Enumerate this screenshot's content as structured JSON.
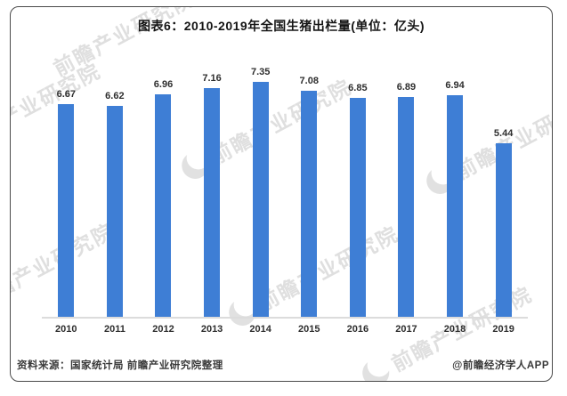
{
  "card": {
    "title": "图表6：2010-2019年全国生猪出栏量(单位：亿头)",
    "source_note": "资料来源：国家统计局 前瞻产业研究院整理",
    "credit": "@前瞻经济学人APP"
  },
  "watermark": {
    "text": "前瞻产业研究院",
    "logo_icon": "qianzhan-logo-circle",
    "color": "#c8c8c8"
  },
  "chart_data": {
    "type": "bar",
    "title": "图表6：2010-2019年全国生猪出栏量(单位：亿头)",
    "unit": "亿头",
    "categories": [
      "2010",
      "2011",
      "2012",
      "2013",
      "2014",
      "2015",
      "2016",
      "2017",
      "2018",
      "2019"
    ],
    "values": [
      6.67,
      6.62,
      6.96,
      7.16,
      7.35,
      7.08,
      6.85,
      6.89,
      6.94,
      5.44
    ],
    "value_labels_shown": true,
    "bar_color": "#3E7ED5",
    "xlabel": "",
    "ylabel": "",
    "ylim": [
      0,
      8
    ],
    "grid": false,
    "legend": false,
    "y_axis_shown": false,
    "x_axis_line_color": "#dcdcdc"
  }
}
